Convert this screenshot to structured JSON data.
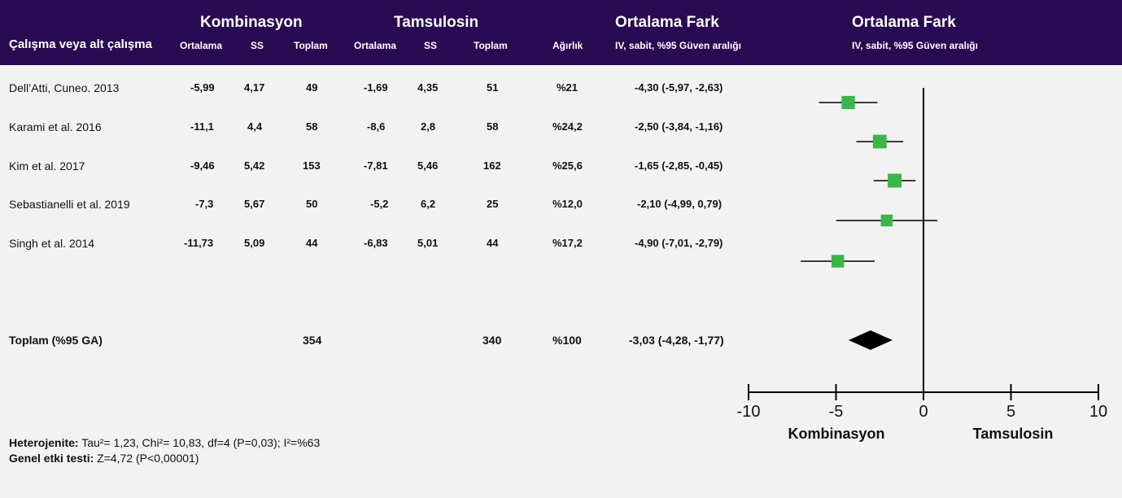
{
  "header": {
    "group1": "Kombinasyon",
    "group2": "Tamsulosin",
    "effect_title_1": "Ortalama Fark",
    "effect_sub_1": "IV, sabit, %95 Güven aralığı",
    "effect_title_2": "Ortalama Fark",
    "effect_sub_2": "IV, sabit, %95 Güven aralığı",
    "study_col": "Çalışma veya alt çalışma",
    "mean": "Ortalama",
    "sd": "SS",
    "total": "Toplam",
    "mean2": "Ortalama",
    "sd2": "SS",
    "total2": "Toplam",
    "weight": "Ağırlık"
  },
  "rows": [
    {
      "study": "Dell’Atti, Cuneo. 2013",
      "m1": "-5,99",
      "s1": "4,17",
      "n1": "49",
      "m2": "-1,69",
      "s2": "4,35",
      "n2": "51",
      "w": "%21",
      "ci": "-4,30 (-5,97, -2,63)"
    },
    {
      "study": "Karami et al. 2016",
      "m1": "-11,1",
      "s1": "4,4",
      "n1": "58",
      "m2": "-8,6",
      "s2": "2,8",
      "n2": "58",
      "w": "%24,2",
      "ci": "-2,50 (-3,84, -1,16)"
    },
    {
      "study": "Kim et al. 2017",
      "m1": "-9,46",
      "s1": "5,42",
      "n1": "153",
      "m2": "-7,81",
      "s2": "5,46",
      "n2": "162",
      "w": "%25,6",
      "ci": "-1,65 (-2,85, -0,45)"
    },
    {
      "study": "Sebastianelli et al. 2019",
      "m1": "-7,3",
      "s1": "5,67",
      "n1": "50",
      "m2": "-5,2",
      "s2": "6,2",
      "n2": "25",
      "w": "%12,0",
      "ci": "-2,10 (-4,99, 0,79)"
    },
    {
      "study": "Singh et al. 2014",
      "m1": "-11,73",
      "s1": "5,09",
      "n1": "44",
      "m2": "-6,83",
      "s2": "5,01",
      "n2": "44",
      "w": "%17,2",
      "ci": "-4,90 (-7,01, -2,79)"
    }
  ],
  "total_row": {
    "label": "Toplam (%95 GA)",
    "n1": "354",
    "n2": "340",
    "w": "%100",
    "ci": "-3,03 (-4,28, -1,77)"
  },
  "footer": {
    "het_label": "Heterojenite:",
    "het_text": " Tau²= 1,23, Chi²= 10,83, df=4 (P=0,03); I²=%63",
    "test_label": "Genel etki testi:",
    "test_text": " Z=4,72 (P<0,00001)"
  },
  "chart_data": {
    "type": "forest",
    "xlim": [
      -10,
      10
    ],
    "ticks": [
      -10,
      -5,
      0,
      5,
      10
    ],
    "tick_labels": [
      "-10",
      "-5",
      "0",
      "5",
      "10"
    ],
    "left_label": "Kombinasyon",
    "right_label": "Tamsulosin",
    "studies": [
      {
        "estimate": -4.3,
        "lower": -5.97,
        "upper": -2.63,
        "weight": 21.0
      },
      {
        "estimate": -2.5,
        "lower": -3.84,
        "upper": -1.16,
        "weight": 24.2
      },
      {
        "estimate": -1.65,
        "lower": -2.85,
        "upper": -0.45,
        "weight": 25.6
      },
      {
        "estimate": -2.1,
        "lower": -4.99,
        "upper": 0.79,
        "weight": 12.0
      },
      {
        "estimate": -4.9,
        "lower": -7.01,
        "upper": -2.79,
        "weight": 17.2
      }
    ],
    "pooled": {
      "estimate": -3.03,
      "lower": -4.28,
      "upper": -1.77
    },
    "colors": {
      "marker": "#3cb54a",
      "line": "#000000",
      "diamond": "#000000"
    }
  }
}
